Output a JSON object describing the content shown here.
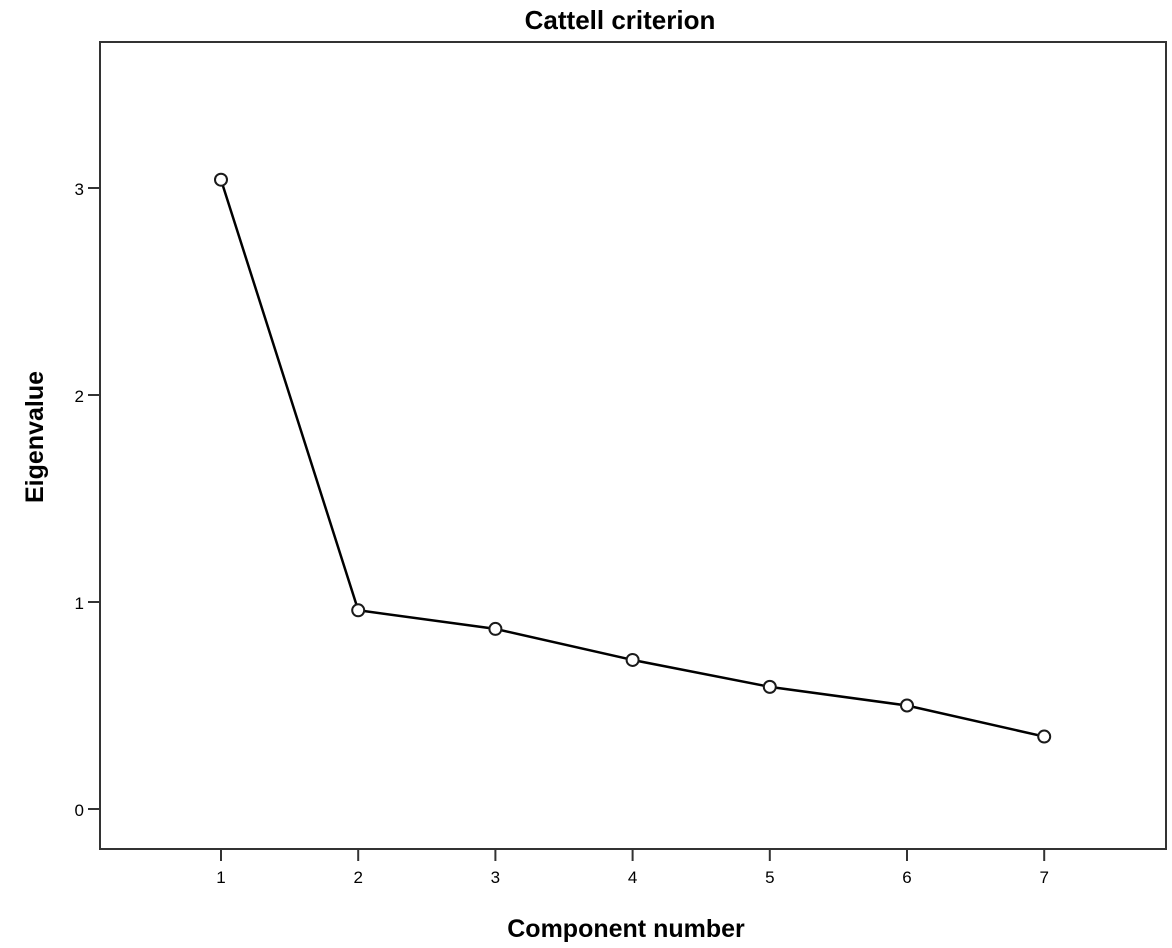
{
  "chart_data": {
    "type": "line",
    "title": "Cattell criterion",
    "xlabel": "Component number",
    "ylabel": "Eigenvalue",
    "x": [
      1,
      2,
      3,
      4,
      5,
      6,
      7
    ],
    "categories": [
      "1",
      "2",
      "3",
      "4",
      "5",
      "6",
      "7"
    ],
    "values": [
      3.04,
      0.96,
      0.87,
      0.72,
      0.59,
      0.5,
      0.35
    ],
    "series": [
      {
        "name": "Eigenvalue",
        "values": [
          3.04,
          0.96,
          0.87,
          0.72,
          0.59,
          0.5,
          0.35
        ],
        "marker": "open-circle",
        "color": "#000000"
      }
    ],
    "yticks": [
      "0",
      "1",
      "2",
      "3"
    ],
    "xticks": [
      "1",
      "2",
      "3",
      "4",
      "5",
      "6",
      "7"
    ],
    "ylim": [
      -0.19,
      3.7
    ],
    "xlim": [
      0.12,
      7.9
    ],
    "grid": false,
    "legend": null
  }
}
